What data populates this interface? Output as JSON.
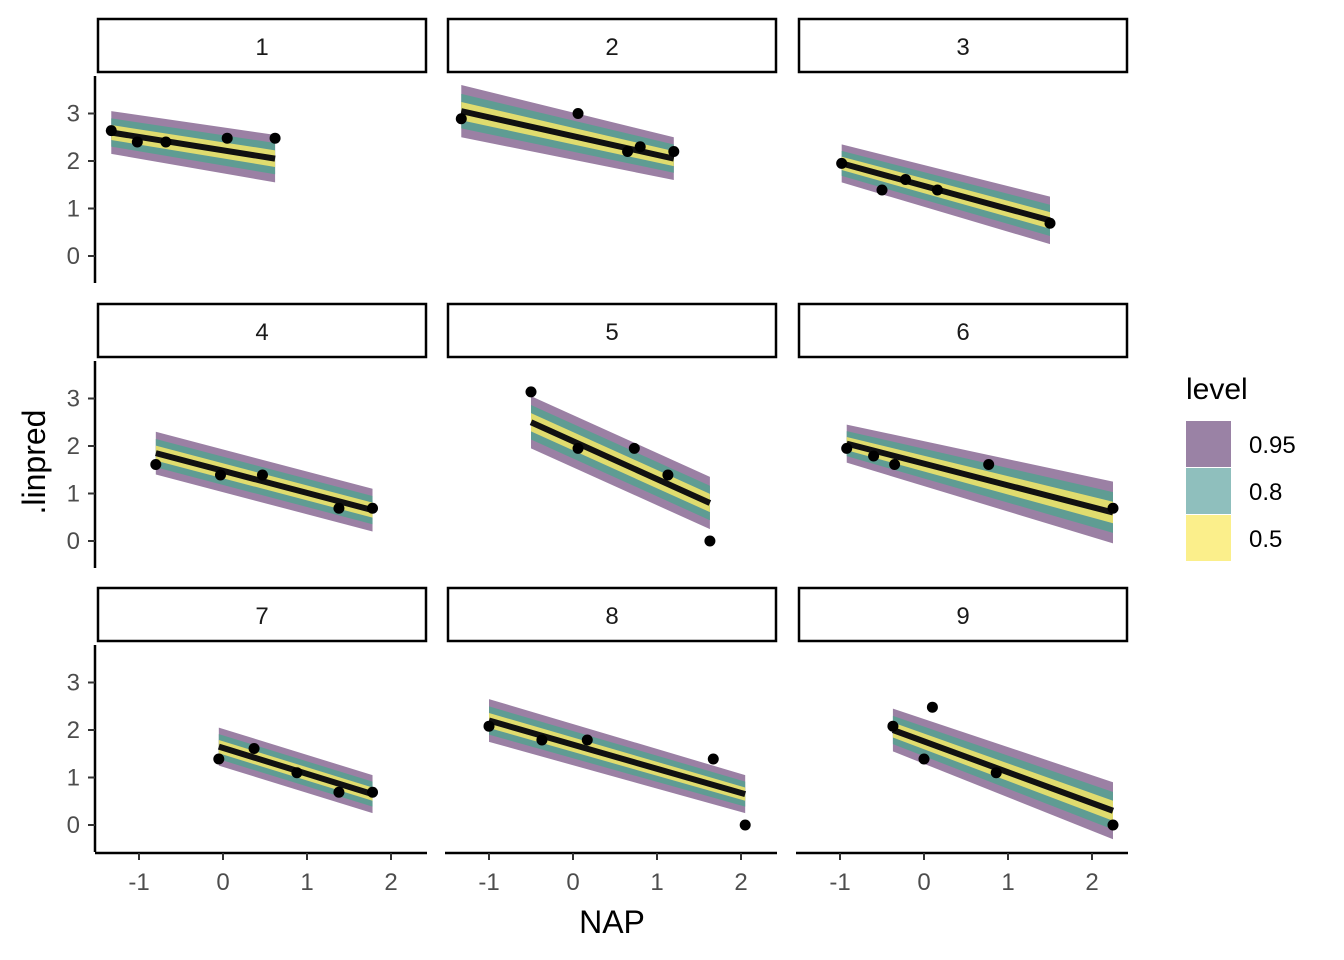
{
  "chart_data": {
    "type": "line",
    "xlabel": "NAP",
    "ylabel": ".linpred",
    "xlim": [
      -1.5,
      2.4
    ],
    "ylim": [
      -0.3,
      3.8
    ],
    "x_ticks": [
      -1,
      0,
      1,
      2
    ],
    "y_ticks": [
      0,
      1,
      2,
      3
    ],
    "legend": {
      "title": "level",
      "position": "right",
      "entries": [
        {
          "label": "0.95",
          "color": "#9a82a5"
        },
        {
          "label": "0.8",
          "color": "#8fbfbd"
        },
        {
          "label": "0.5",
          "color": "#fbef8b"
        }
      ]
    },
    "band_colors": {
      "0.95": "#9b80a4",
      "0.8": "#5f9c93",
      "0.5": "#e0dc6e"
    },
    "band_half_width_scale": {
      "0.95": 1.0,
      "0.8": 0.66,
      "0.5": 0.35
    },
    "panels": [
      {
        "label": "1",
        "x_range": [
          -1.33,
          0.62
        ],
        "fit": [
          2.6,
          2.05
        ],
        "half_width": [
          0.45,
          0.5
        ],
        "points": [
          [
            -1.33,
            2.64
          ],
          [
            -1.02,
            2.4
          ],
          [
            -0.68,
            2.4
          ],
          [
            0.05,
            2.48
          ],
          [
            0.62,
            2.48
          ]
        ]
      },
      {
        "label": "2",
        "x_range": [
          -1.33,
          1.2
        ],
        "fit": [
          3.05,
          2.05
        ],
        "half_width": [
          0.55,
          0.45
        ],
        "points": [
          [
            -1.33,
            2.89
          ],
          [
            0.06,
            3.0
          ],
          [
            0.65,
            2.2
          ],
          [
            0.8,
            2.3
          ],
          [
            1.2,
            2.2
          ]
        ]
      },
      {
        "label": "3",
        "x_range": [
          -0.98,
          1.5
        ],
        "fit": [
          1.95,
          0.75
        ],
        "half_width": [
          0.4,
          0.5
        ],
        "points": [
          [
            -0.98,
            1.95
          ],
          [
            -0.5,
            1.39
          ],
          [
            -0.22,
            1.61
          ],
          [
            0.16,
            1.39
          ],
          [
            1.5,
            0.69
          ]
        ]
      },
      {
        "label": "4",
        "x_range": [
          -0.8,
          1.78
        ],
        "fit": [
          1.85,
          0.65
        ],
        "half_width": [
          0.45,
          0.45
        ],
        "points": [
          [
            -0.8,
            1.61
          ],
          [
            -0.03,
            1.39
          ],
          [
            0.47,
            1.39
          ],
          [
            1.38,
            0.69
          ],
          [
            1.78,
            0.69
          ]
        ]
      },
      {
        "label": "5",
        "x_range": [
          -0.5,
          1.63
        ],
        "fit": [
          2.5,
          0.8
        ],
        "half_width": [
          0.55,
          0.55
        ],
        "points": [
          [
            -0.5,
            3.14
          ],
          [
            0.06,
            1.95
          ],
          [
            0.73,
            1.95
          ],
          [
            1.13,
            1.39
          ],
          [
            1.63,
            0.0
          ]
        ]
      },
      {
        "label": "6",
        "x_range": [
          -0.92,
          2.25
        ],
        "fit": [
          2.05,
          0.6
        ],
        "half_width": [
          0.4,
          0.65
        ],
        "points": [
          [
            -0.92,
            1.95
          ],
          [
            -0.6,
            1.79
          ],
          [
            -0.35,
            1.61
          ],
          [
            0.77,
            1.61
          ],
          [
            2.25,
            0.69
          ]
        ]
      },
      {
        "label": "7",
        "x_range": [
          -0.05,
          1.78
        ],
        "fit": [
          1.65,
          0.65
        ],
        "half_width": [
          0.4,
          0.4
        ],
        "points": [
          [
            -0.05,
            1.39
          ],
          [
            0.37,
            1.61
          ],
          [
            0.88,
            1.1
          ],
          [
            1.38,
            0.69
          ],
          [
            1.78,
            0.69
          ]
        ]
      },
      {
        "label": "8",
        "x_range": [
          -1.0,
          2.05
        ],
        "fit": [
          2.2,
          0.65
        ],
        "half_width": [
          0.45,
          0.4
        ],
        "points": [
          [
            -1.0,
            2.08
          ],
          [
            -0.37,
            1.79
          ],
          [
            0.17,
            1.79
          ],
          [
            1.67,
            1.39
          ],
          [
            2.05,
            0.0
          ]
        ]
      },
      {
        "label": "9",
        "x_range": [
          -0.37,
          2.25
        ],
        "fit": [
          2.0,
          0.3
        ],
        "half_width": [
          0.45,
          0.6
        ],
        "points": [
          [
            -0.37,
            2.08
          ],
          [
            0.0,
            1.39
          ],
          [
            0.1,
            2.48
          ],
          [
            0.86,
            1.1
          ],
          [
            2.25,
            0.0
          ]
        ]
      }
    ]
  }
}
